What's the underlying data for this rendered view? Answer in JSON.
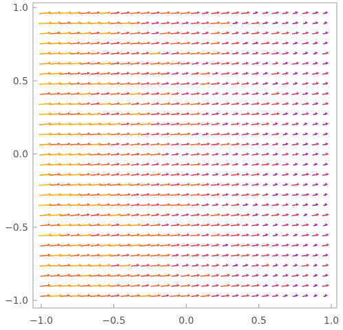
{
  "chart_data": {
    "type": "vector_field",
    "title": "",
    "xlabel": "",
    "ylabel": "",
    "xlim": [
      -1.0,
      1.0
    ],
    "ylim": [
      -1.0,
      1.0
    ],
    "x_ticks": [
      -1.0,
      -0.5,
      0.0,
      0.5,
      1.0
    ],
    "y_ticks": [
      -1.0,
      -0.5,
      0.0,
      0.5,
      1.0
    ],
    "x_tick_labels": [
      "−1.0",
      "−0.5",
      "0.0",
      "0.5",
      "1.0"
    ],
    "y_tick_labels": [
      "−1.0",
      "−0.5",
      "0.0",
      "0.5",
      "1.0"
    ],
    "grid": false,
    "frame": true,
    "color_scale": [
      "#FDB515",
      "#F7A21A",
      "#EE6A2C",
      "#E0464A",
      "#C83C77",
      "#A12F9E",
      "#8C2BB0",
      "#3F1FB0"
    ],
    "arrow_direction": "right",
    "field": {
      "columns": 29,
      "rows": 29,
      "x_start": -0.97,
      "x_step": 0.069,
      "y_start": -0.97,
      "y_step": 0.069,
      "description_of_magnitude": "largest on the left side (x ≈ -1 to -0.5), decreasing toward the right"
    }
  }
}
